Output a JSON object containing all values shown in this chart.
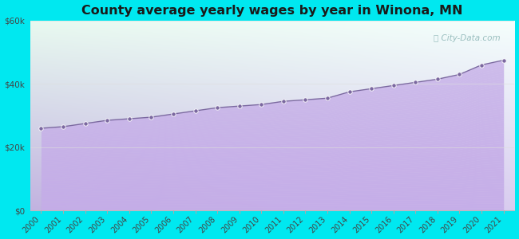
{
  "title": "County average yearly wages by year in Winona, MN",
  "years": [
    2000,
    2001,
    2002,
    2003,
    2004,
    2005,
    2006,
    2007,
    2008,
    2009,
    2010,
    2011,
    2012,
    2013,
    2014,
    2015,
    2016,
    2017,
    2018,
    2019,
    2020,
    2021
  ],
  "wages": [
    26000,
    26500,
    27500,
    28500,
    29000,
    29500,
    30500,
    31500,
    32500,
    33000,
    33500,
    34500,
    35000,
    35500,
    37500,
    38500,
    39500,
    40500,
    41500,
    43000,
    46000,
    47500
  ],
  "ylim": [
    0,
    60000
  ],
  "yticks": [
    0,
    20000,
    40000,
    60000
  ],
  "ytick_labels": [
    "$0",
    "$20k",
    "$40k",
    "$60k"
  ],
  "marker_color": "#7b68a0",
  "fill_color_top": "#c9b8e8",
  "fill_color_bottom": "#b8a0d8",
  "bg_color_outer": "#00e8f0",
  "bg_chart_tl": "#e8faf2",
  "bg_chart_tr": "#f8fefe",
  "bg_chart_bl": "#c0b0e0",
  "bg_chart_br": "#d8c8f0",
  "title_fontsize": 11.5,
  "watermark_text": "City-Data.com",
  "watermark_color": "#90b8b8",
  "tick_label_color": "#444444"
}
